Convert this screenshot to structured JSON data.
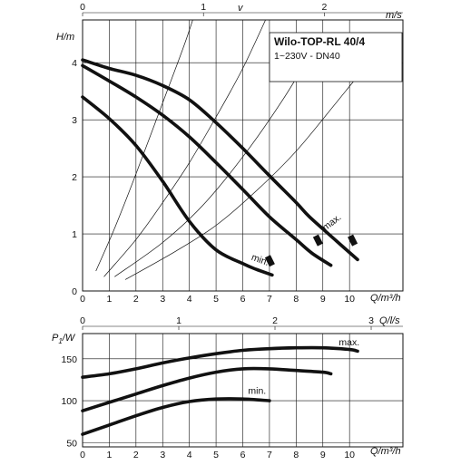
{
  "chart_data": [
    {
      "type": "line",
      "title": "Wilo-TOP-RL 40/4",
      "subtitle": "1~230V - DN40",
      "xlabel": "Q/m³/h",
      "ylabel": "H/m",
      "top_axis_label": "v",
      "top_axis_unit": "m/s",
      "top_ticks": [
        "0",
        "1",
        "2"
      ],
      "top_tick_values": [
        0,
        1,
        2
      ],
      "top_axis_max": 2.65,
      "xlim": [
        0,
        12
      ],
      "ylim": [
        0,
        4.75
      ],
      "xticks": [
        "0",
        "1",
        "2",
        "3",
        "4",
        "5",
        "6",
        "7",
        "8",
        "9",
        "10"
      ],
      "yticks": [
        "0",
        "1",
        "2",
        "3",
        "4"
      ],
      "grid": true,
      "series": [
        {
          "x": [
            0,
            1,
            2,
            3,
            4,
            5,
            6,
            7,
            8,
            8.5,
            9.5,
            10.3
          ],
          "y": [
            4.05,
            3.9,
            3.78,
            3.6,
            3.35,
            2.95,
            2.5,
            2.02,
            1.55,
            1.3,
            0.88,
            0.55
          ]
        },
        {
          "x": [
            0,
            1,
            2,
            3,
            4,
            5,
            6,
            7,
            8,
            8.6,
            9.3
          ],
          "y": [
            3.95,
            3.68,
            3.4,
            3.08,
            2.7,
            2.25,
            1.78,
            1.3,
            0.9,
            0.66,
            0.45
          ]
        },
        {
          "x": [
            0,
            1,
            2,
            3,
            4,
            5,
            6,
            6.5,
            7.1
          ],
          "y": [
            3.4,
            3.02,
            2.55,
            1.92,
            1.22,
            0.72,
            0.48,
            0.38,
            0.28
          ]
        }
      ],
      "system_curves": [
        {
          "x": [
            0.5,
            1.2,
            2.0,
            3.0,
            3.8,
            4.3
          ],
          "y": [
            0.35,
            1.1,
            2.05,
            3.3,
            4.3,
            5.0
          ]
        },
        {
          "x": [
            0.8,
            2.0,
            3.0,
            4.0,
            5.0,
            6.0,
            7.0
          ],
          "y": [
            0.25,
            0.9,
            1.55,
            2.25,
            3.05,
            3.9,
            4.9
          ]
        },
        {
          "x": [
            1.2,
            3.0,
            4.5,
            6.0,
            7.5,
            8.6
          ],
          "y": [
            0.25,
            0.85,
            1.5,
            2.35,
            3.35,
            4.2
          ]
        },
        {
          "x": [
            1.6,
            3.5,
            5.0,
            6.5,
            8.0,
            9.5,
            10.8
          ],
          "y": [
            0.2,
            0.7,
            1.15,
            1.75,
            2.45,
            3.3,
            4.05
          ]
        }
      ],
      "annotations": [
        {
          "text": "min.",
          "x": 6.3,
          "y": 0.55
        },
        {
          "text": "max.",
          "x": 9.1,
          "y": 1.05
        }
      ]
    },
    {
      "type": "line",
      "xlabel": "Q/m³/h",
      "ylabel": "P1/W",
      "ylabel_main": "P",
      "ylabel_sub": "1",
      "ylabel_unit": "/W",
      "top_axis_label": "Q/l/s",
      "top_ticks": [
        "0",
        "1",
        "2",
        "3"
      ],
      "top_tick_values": [
        0,
        1,
        2,
        3
      ],
      "top_axis_max": 3.33,
      "xlim": [
        0,
        12
      ],
      "ylim": [
        45,
        180
      ],
      "xticks": [
        "0",
        "1",
        "2",
        "3",
        "4",
        "5",
        "6",
        "7",
        "8",
        "9",
        "10"
      ],
      "yticks": [
        "50",
        "100",
        "150"
      ],
      "ytick_values": [
        50,
        100,
        150
      ],
      "grid": true,
      "series": [
        {
          "x": [
            0,
            1,
            2,
            3,
            4,
            5,
            6,
            7,
            8,
            9,
            10,
            10.3
          ],
          "y": [
            128,
            132,
            138,
            145,
            151,
            156,
            160,
            162,
            163,
            163,
            161,
            159
          ]
        },
        {
          "x": [
            0,
            1,
            2,
            3,
            4,
            5,
            6,
            7,
            8,
            9,
            9.3
          ],
          "y": [
            88,
            98,
            108,
            118,
            127,
            134,
            138,
            138,
            136,
            134,
            132
          ]
        },
        {
          "x": [
            0,
            1,
            2,
            3,
            4,
            5,
            6,
            7
          ],
          "y": [
            60,
            71,
            82,
            92,
            99,
            102,
            102,
            100
          ]
        }
      ],
      "annotations": [
        {
          "text": "max.",
          "x": 9.6,
          "y": 166
        },
        {
          "text": "min.",
          "x": 6.2,
          "y": 108
        }
      ]
    }
  ]
}
